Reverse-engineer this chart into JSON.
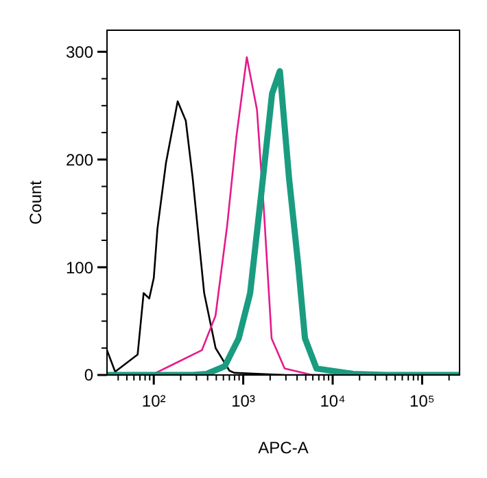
{
  "chart_data": {
    "type": "line",
    "xlabel": "APC-A",
    "ylabel": "Count",
    "log": "x",
    "xlim": [
      30,
      262144
    ],
    "ylim": [
      0,
      320
    ],
    "xticks": [
      {
        "value": 40,
        "label": null
      },
      {
        "value": 50,
        "label": null
      },
      {
        "value": 60,
        "label": null
      },
      {
        "value": 70,
        "label": null
      },
      {
        "value": 80,
        "label": null
      },
      {
        "value": 90,
        "label": null
      },
      {
        "value": 100,
        "label": "10²"
      },
      {
        "value": 200,
        "label": null
      },
      {
        "value": 300,
        "label": null
      },
      {
        "value": 400,
        "label": null
      },
      {
        "value": 500,
        "label": null
      },
      {
        "value": 600,
        "label": null
      },
      {
        "value": 700,
        "label": null
      },
      {
        "value": 800,
        "label": null
      },
      {
        "value": 900,
        "label": null
      },
      {
        "value": 1000,
        "label": "10³"
      },
      {
        "value": 2000,
        "label": null
      },
      {
        "value": 3000,
        "label": null
      },
      {
        "value": 4000,
        "label": null
      },
      {
        "value": 5000,
        "label": null
      },
      {
        "value": 6000,
        "label": null
      },
      {
        "value": 7000,
        "label": null
      },
      {
        "value": 8000,
        "label": null
      },
      {
        "value": 9000,
        "label": null
      },
      {
        "value": 10000,
        "label": "10⁴"
      },
      {
        "value": 20000,
        "label": null
      },
      {
        "value": 30000,
        "label": null
      },
      {
        "value": 40000,
        "label": null
      },
      {
        "value": 50000,
        "label": null
      },
      {
        "value": 60000,
        "label": null
      },
      {
        "value": 70000,
        "label": null
      },
      {
        "value": 80000,
        "label": null
      },
      {
        "value": 90000,
        "label": null
      },
      {
        "value": 100000,
        "label": "10⁵"
      },
      {
        "value": 200000,
        "label": null
      }
    ],
    "yticks": [
      0,
      {
        "value": 25,
        "label": null
      },
      {
        "value": 50,
        "label": null
      },
      {
        "value": 75,
        "label": null
      },
      100,
      {
        "value": 125,
        "label": null
      },
      {
        "value": 150,
        "label": null
      },
      {
        "value": 175,
        "label": null
      },
      200,
      {
        "value": 225,
        "label": null
      },
      {
        "value": 250,
        "label": null
      },
      {
        "value": 275,
        "label": null
      },
      300
    ],
    "grid": false,
    "line_style": "solid",
    "series": [
      {
        "color": "#000000",
        "x": [
          30,
          37,
          66,
          77,
          89,
          100,
          110,
          137,
          185,
          228,
          272,
          366,
          491,
          701,
          794,
          1580,
          3000,
          262144
        ],
        "values": [
          23,
          3,
          19,
          76,
          71,
          90,
          136,
          197,
          254,
          236,
          183,
          76,
          25,
          4,
          2,
          1,
          0,
          0
        ]
      },
      {
        "color": "#e6198c",
        "x": [
          30,
          100,
          345,
          490,
          660,
          838,
          1097,
          1426,
          1702,
          2077,
          2900,
          5900,
          262144
        ],
        "values": [
          0,
          1,
          23,
          55,
          138,
          221,
          295,
          246,
          153,
          34,
          6,
          0,
          0
        ]
      },
      {
        "color": "#1a9c80",
        "x": [
          30,
          275,
          390,
          620,
          890,
          1195,
          1600,
          2100,
          2515,
          2570,
          3250,
          4120,
          4900,
          6600,
          17000,
          40000,
          262144
        ],
        "values": [
          0,
          0,
          1,
          8,
          34,
          76,
          170,
          261,
          280,
          282,
          183,
          102,
          34,
          6,
          1,
          0,
          0
        ]
      }
    ]
  }
}
